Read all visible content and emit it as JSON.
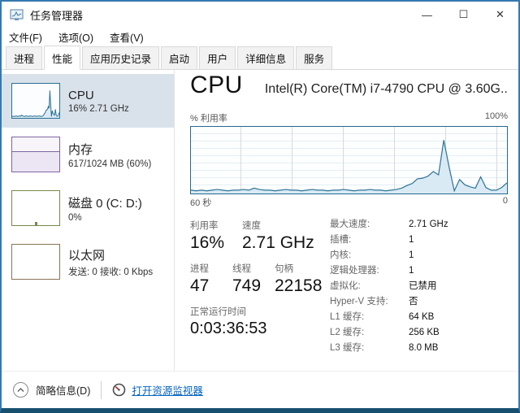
{
  "window": {
    "title": "任务管理器",
    "controls": {
      "minimize": "—",
      "maximize": "☐",
      "close": "✕"
    }
  },
  "menu": {
    "items": [
      "文件(F)",
      "选项(O)",
      "查看(V)"
    ]
  },
  "tabs": {
    "active": "性能",
    "items": [
      "进程",
      "性能",
      "应用历史记录",
      "启动",
      "用户",
      "详细信息",
      "服务"
    ]
  },
  "sidebar": {
    "items": [
      {
        "label": "CPU",
        "sub": "16% 2.71 GHz"
      },
      {
        "label": "内存",
        "sub": "617/1024 MB (60%)"
      },
      {
        "label": "磁盘 0 (C: D:)",
        "sub": "0%"
      },
      {
        "label": "以太网",
        "sub": "发送: 0 接收: 0 Kbps"
      }
    ]
  },
  "main": {
    "cpu_title": "CPU",
    "cpu_subtitle": "Intel(R) Core(TM) i7-4790 CPU @ 3.60G...",
    "chart_labels": {
      "top_left": "% 利用率",
      "top_right": "100%",
      "bottom_left": "60 秒",
      "bottom_right": "0"
    },
    "stats": {
      "utilization": {
        "label": "利用率",
        "value": "16%"
      },
      "speed": {
        "label": "速度",
        "value": "2.71 GHz"
      },
      "processes": {
        "label": "进程",
        "value": "47"
      },
      "threads": {
        "label": "线程",
        "value": "749"
      },
      "handles": {
        "label": "句柄",
        "value": "22158"
      },
      "uptime": {
        "label": "正常运行时间",
        "value": "0:03:36:53"
      },
      "right": [
        {
          "label": "最大速度:",
          "value": "2.71 GHz"
        },
        {
          "label": "插槽:",
          "value": "1"
        },
        {
          "label": "内核:",
          "value": "1"
        },
        {
          "label": "逻辑处理器:",
          "value": "1"
        },
        {
          "label": "虚拟化:",
          "value": "已禁用"
        },
        {
          "label": "Hyper-V 支持:",
          "value": "否"
        },
        {
          "label": "L1 缓存:",
          "value": "64 KB"
        },
        {
          "label": "L2 缓存:",
          "value": "256 KB"
        },
        {
          "label": "L3 缓存:",
          "value": "8.0 MB"
        }
      ]
    }
  },
  "footer": {
    "details_toggle": "简略信息(D)",
    "resource_monitor_link": "打开资源监视器"
  },
  "colors": {
    "chart_line": "#2d7495",
    "chart_fill": "#d9eaf5",
    "chart_border": "#236b8e",
    "accent_window_border": "#3579b1",
    "link": "#0563c1",
    "selected_item_bg": "#d9e2ea",
    "memory_border": "#8064a2",
    "disk_border": "#77894d",
    "ethernet_border": "#8a7355"
  },
  "chart_data": {
    "type": "area",
    "title": "CPU % 利用率 (60 秒窗口)",
    "xlabel": "60 秒 → 0",
    "ylabel": "% 利用率",
    "ylim": [
      0,
      100
    ],
    "x_window_seconds": 60,
    "values": [
      5,
      4,
      5,
      4,
      5,
      6,
      5,
      4,
      5,
      5,
      6,
      5,
      8,
      6,
      5,
      5,
      4,
      5,
      6,
      5,
      5,
      4,
      5,
      6,
      5,
      5,
      4,
      5,
      5,
      6,
      5,
      4,
      5,
      5,
      6,
      5,
      5,
      4,
      5,
      6,
      8,
      12,
      15,
      22,
      23,
      26,
      33,
      28,
      80,
      40,
      4,
      21,
      13,
      10,
      8,
      25,
      9,
      5,
      5,
      9,
      16
    ]
  }
}
